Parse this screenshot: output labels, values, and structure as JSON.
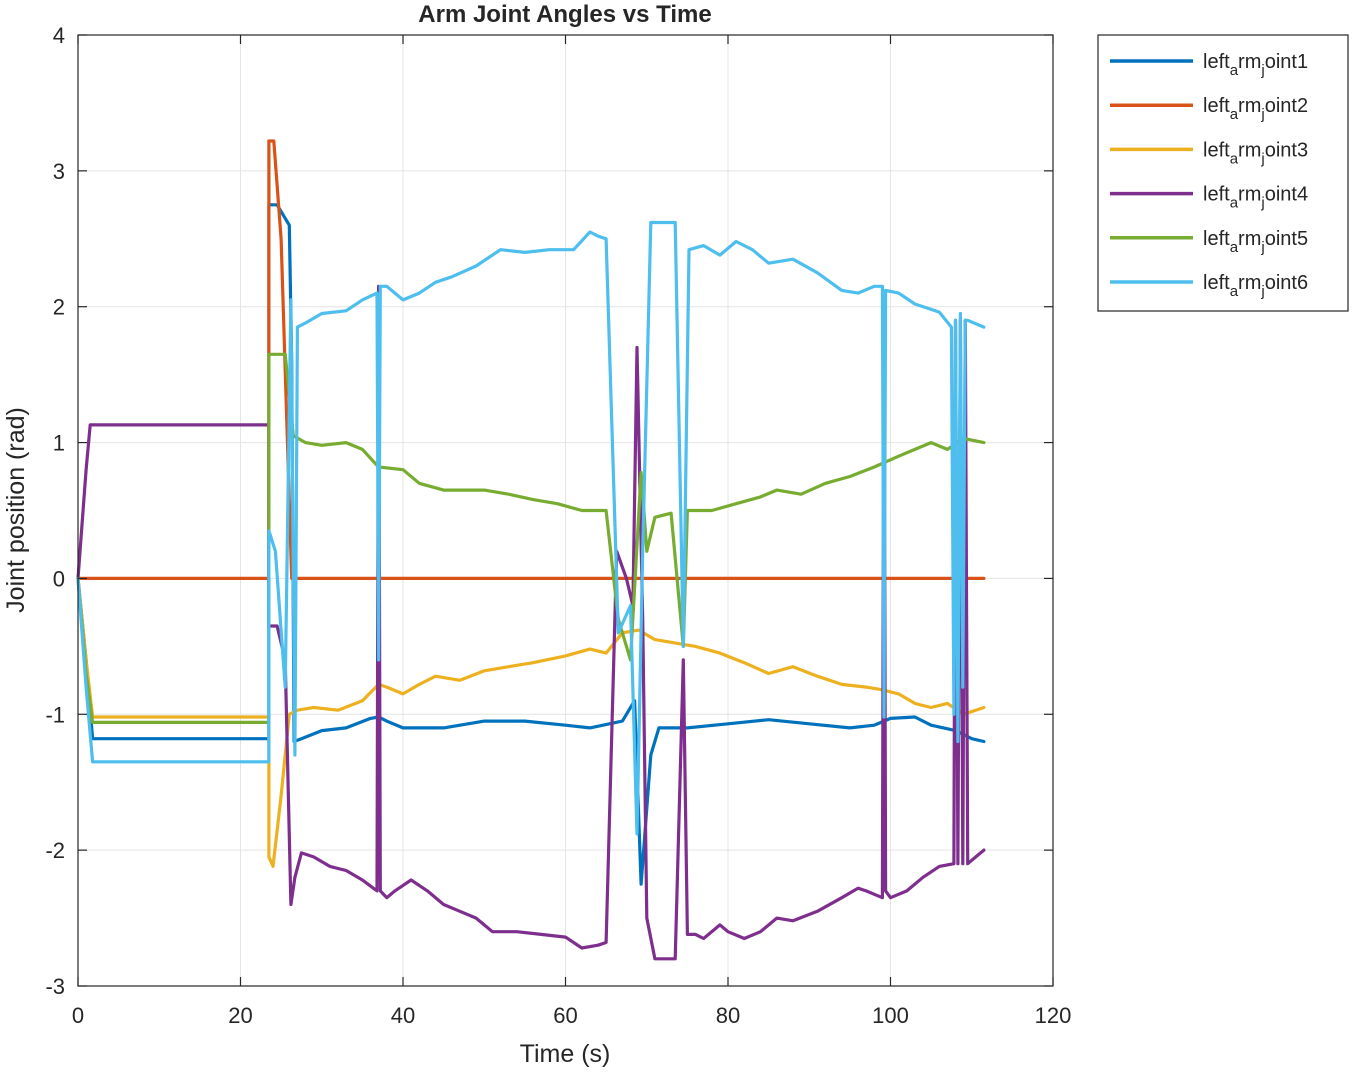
{
  "chart_data": {
    "type": "line",
    "title": "Arm Joint Angles vs Time",
    "xlabel": "Time (s)",
    "ylabel": "Joint position (rad)",
    "xlim": [
      0,
      120
    ],
    "ylim": [
      -3,
      4
    ],
    "xticks": [
      0,
      20,
      40,
      60,
      80,
      100,
      120
    ],
    "yticks": [
      -3,
      -2,
      -1,
      0,
      1,
      2,
      3,
      4
    ],
    "grid": true,
    "legend_position": "outside top-right",
    "series": [
      {
        "name": "left_arm_joint1",
        "legend_label": {
          "base": "left",
          "sub1": "a",
          "mid": "rm",
          "sub2": "j",
          "tail": "oint1"
        },
        "color": "#0072BD",
        "points": [
          [
            0,
            0
          ],
          [
            1,
            -0.6
          ],
          [
            1.8,
            -1.18
          ],
          [
            23.5,
            -1.18
          ],
          [
            23.5,
            2.75
          ],
          [
            24.5,
            2.75
          ],
          [
            26,
            2.6
          ],
          [
            26.3,
            1.6
          ],
          [
            26.6,
            -1.2
          ],
          [
            27.5,
            -1.18
          ],
          [
            30,
            -1.12
          ],
          [
            33,
            -1.1
          ],
          [
            36,
            -1.03
          ],
          [
            37,
            -1.02
          ],
          [
            38,
            -1.05
          ],
          [
            40,
            -1.1
          ],
          [
            45,
            -1.1
          ],
          [
            50,
            -1.05
          ],
          [
            55,
            -1.05
          ],
          [
            60,
            -1.08
          ],
          [
            63,
            -1.1
          ],
          [
            67,
            -1.05
          ],
          [
            68.5,
            -0.9
          ],
          [
            69.3,
            -2.25
          ],
          [
            70.5,
            -1.3
          ],
          [
            71.5,
            -1.1
          ],
          [
            75,
            -1.1
          ],
          [
            80,
            -1.07
          ],
          [
            85,
            -1.04
          ],
          [
            90,
            -1.07
          ],
          [
            95,
            -1.1
          ],
          [
            98,
            -1.08
          ],
          [
            100,
            -1.03
          ],
          [
            103,
            -1.02
          ],
          [
            105,
            -1.08
          ],
          [
            108,
            -1.12
          ],
          [
            110,
            -1.18
          ],
          [
            111.5,
            -1.2
          ]
        ]
      },
      {
        "name": "left_arm_joint2",
        "legend_label": {
          "base": "left",
          "sub1": "a",
          "mid": "rm",
          "sub2": "j",
          "tail": "oint2"
        },
        "color": "#D95319",
        "points": [
          [
            0,
            0
          ],
          [
            23.5,
            0
          ],
          [
            23.5,
            3.22
          ],
          [
            24.1,
            3.22
          ],
          [
            25,
            2.5
          ],
          [
            26.3,
            0
          ],
          [
            111.5,
            0
          ]
        ]
      },
      {
        "name": "left_arm_joint3",
        "legend_label": {
          "base": "left",
          "sub1": "a",
          "mid": "rm",
          "sub2": "j",
          "tail": "oint3"
        },
        "color": "#EDB120",
        "points": [
          [
            0,
            0
          ],
          [
            1,
            -0.6
          ],
          [
            1.8,
            -1.02
          ],
          [
            23.5,
            -1.02
          ],
          [
            23.5,
            -2.05
          ],
          [
            24,
            -2.12
          ],
          [
            25,
            -1.6
          ],
          [
            26,
            -1
          ],
          [
            27,
            -0.97
          ],
          [
            29,
            -0.95
          ],
          [
            32,
            -0.97
          ],
          [
            35,
            -0.9
          ],
          [
            37,
            -0.78
          ],
          [
            38,
            -0.8
          ],
          [
            40,
            -0.85
          ],
          [
            42,
            -0.78
          ],
          [
            44,
            -0.72
          ],
          [
            47,
            -0.75
          ],
          [
            50,
            -0.68
          ],
          [
            53,
            -0.65
          ],
          [
            56,
            -0.62
          ],
          [
            60,
            -0.57
          ],
          [
            63,
            -0.52
          ],
          [
            65,
            -0.55
          ],
          [
            67,
            -0.4
          ],
          [
            69,
            -0.38
          ],
          [
            71,
            -0.45
          ],
          [
            73,
            -0.47
          ],
          [
            76,
            -0.5
          ],
          [
            79,
            -0.55
          ],
          [
            82,
            -0.62
          ],
          [
            85,
            -0.7
          ],
          [
            88,
            -0.65
          ],
          [
            91,
            -0.72
          ],
          [
            94,
            -0.78
          ],
          [
            97,
            -0.8
          ],
          [
            99,
            -0.82
          ],
          [
            101,
            -0.85
          ],
          [
            103,
            -0.92
          ],
          [
            105,
            -0.95
          ],
          [
            107,
            -0.92
          ],
          [
            109,
            -1
          ],
          [
            111.5,
            -0.95
          ]
        ]
      },
      {
        "name": "left_arm_joint4",
        "legend_label": {
          "base": "left",
          "sub1": "a",
          "mid": "rm",
          "sub2": "j",
          "tail": "oint4"
        },
        "color": "#7E2F8E",
        "points": [
          [
            0,
            0
          ],
          [
            1,
            0.8
          ],
          [
            1.5,
            1.13
          ],
          [
            23.5,
            1.13
          ],
          [
            23.5,
            -0.35
          ],
          [
            24.5,
            -0.35
          ],
          [
            25.5,
            -0.6
          ],
          [
            26.2,
            -2.4
          ],
          [
            26.7,
            -2.2
          ],
          [
            27.5,
            -2.02
          ],
          [
            29,
            -2.05
          ],
          [
            31,
            -2.12
          ],
          [
            33,
            -2.15
          ],
          [
            35,
            -2.22
          ],
          [
            36.8,
            -2.3
          ],
          [
            37,
            2.15
          ],
          [
            37.2,
            -2.3
          ],
          [
            38,
            -2.35
          ],
          [
            39,
            -2.3
          ],
          [
            41,
            -2.22
          ],
          [
            43,
            -2.3
          ],
          [
            45,
            -2.4
          ],
          [
            47,
            -2.45
          ],
          [
            49,
            -2.5
          ],
          [
            51,
            -2.6
          ],
          [
            54,
            -2.6
          ],
          [
            57,
            -2.62
          ],
          [
            60,
            -2.64
          ],
          [
            62,
            -2.72
          ],
          [
            64,
            -2.7
          ],
          [
            65,
            -2.68
          ],
          [
            66.3,
            0.2
          ],
          [
            67.5,
            0
          ],
          [
            68.3,
            -0.2
          ],
          [
            68.8,
            1.7
          ],
          [
            69.5,
            -0.3
          ],
          [
            70,
            -2.5
          ],
          [
            71,
            -2.8
          ],
          [
            73.5,
            -2.8
          ],
          [
            74.5,
            -0.6
          ],
          [
            75,
            -2.62
          ],
          [
            76,
            -2.62
          ],
          [
            77,
            -2.65
          ],
          [
            79,
            -2.55
          ],
          [
            80,
            -2.6
          ],
          [
            82,
            -2.65
          ],
          [
            84,
            -2.6
          ],
          [
            86,
            -2.5
          ],
          [
            88,
            -2.52
          ],
          [
            91,
            -2.45
          ],
          [
            94,
            -2.35
          ],
          [
            96,
            -2.28
          ],
          [
            97,
            -2.3
          ],
          [
            99,
            -2.35
          ],
          [
            99.2,
            2.1
          ],
          [
            99.4,
            -2.3
          ],
          [
            100,
            -2.35
          ],
          [
            102,
            -2.3
          ],
          [
            104,
            -2.2
          ],
          [
            106,
            -2.12
          ],
          [
            107.8,
            -2.1
          ],
          [
            108,
            1.9
          ],
          [
            108.3,
            -2.1
          ],
          [
            108.6,
            1.9
          ],
          [
            108.9,
            -2.1
          ],
          [
            109.2,
            1.9
          ],
          [
            109.5,
            -2.1
          ],
          [
            110.5,
            -2.05
          ],
          [
            111.5,
            -2
          ]
        ]
      },
      {
        "name": "left_arm_joint5",
        "legend_label": {
          "base": "left",
          "sub1": "a",
          "mid": "rm",
          "sub2": "j",
          "tail": "oint5"
        },
        "color": "#77AC30",
        "points": [
          [
            0,
            0
          ],
          [
            1,
            -0.7
          ],
          [
            1.8,
            -1.06
          ],
          [
            23.5,
            -1.06
          ],
          [
            23.5,
            1.65
          ],
          [
            25.5,
            1.65
          ],
          [
            26.5,
            1.05
          ],
          [
            28,
            1
          ],
          [
            30,
            0.98
          ],
          [
            33,
            1
          ],
          [
            35,
            0.95
          ],
          [
            37,
            0.82
          ],
          [
            40,
            0.8
          ],
          [
            42,
            0.7
          ],
          [
            45,
            0.65
          ],
          [
            48,
            0.65
          ],
          [
            50,
            0.65
          ],
          [
            53,
            0.62
          ],
          [
            56,
            0.58
          ],
          [
            59,
            0.55
          ],
          [
            62,
            0.5
          ],
          [
            64,
            0.5
          ],
          [
            65,
            0.5
          ],
          [
            66.5,
            -0.3
          ],
          [
            68,
            -0.6
          ],
          [
            69.3,
            0.78
          ],
          [
            70,
            0.2
          ],
          [
            71,
            0.45
          ],
          [
            73,
            0.48
          ],
          [
            74.5,
            -0.5
          ],
          [
            75,
            0.5
          ],
          [
            78,
            0.5
          ],
          [
            81,
            0.55
          ],
          [
            84,
            0.6
          ],
          [
            86,
            0.65
          ],
          [
            89,
            0.62
          ],
          [
            92,
            0.7
          ],
          [
            95,
            0.75
          ],
          [
            98,
            0.82
          ],
          [
            101,
            0.9
          ],
          [
            103,
            0.95
          ],
          [
            105,
            1
          ],
          [
            107,
            0.95
          ],
          [
            109,
            1.03
          ],
          [
            111.5,
            1
          ]
        ]
      },
      {
        "name": "left_arm_joint6",
        "legend_label": {
          "base": "left",
          "sub1": "a",
          "mid": "rm",
          "sub2": "j",
          "tail": "oint6"
        },
        "color": "#4DBEEE",
        "points": [
          [
            0,
            0
          ],
          [
            1,
            -0.8
          ],
          [
            1.8,
            -1.35
          ],
          [
            23.5,
            -1.35
          ],
          [
            23.5,
            0.35
          ],
          [
            24.3,
            0.2
          ],
          [
            25.5,
            -0.8
          ],
          [
            26.2,
            2.05
          ],
          [
            26.7,
            -1.3
          ],
          [
            27,
            1.85
          ],
          [
            28,
            1.88
          ],
          [
            30,
            1.95
          ],
          [
            33,
            1.97
          ],
          [
            35,
            2.05
          ],
          [
            36.8,
            2.1
          ],
          [
            37,
            -0.6
          ],
          [
            37.2,
            2.15
          ],
          [
            38,
            2.15
          ],
          [
            40,
            2.05
          ],
          [
            42,
            2.1
          ],
          [
            44,
            2.18
          ],
          [
            46,
            2.22
          ],
          [
            49,
            2.3
          ],
          [
            52,
            2.42
          ],
          [
            55,
            2.4
          ],
          [
            58,
            2.42
          ],
          [
            61,
            2.42
          ],
          [
            63,
            2.55
          ],
          [
            64,
            2.52
          ],
          [
            65,
            2.5
          ],
          [
            66.5,
            -0.4
          ],
          [
            68,
            -0.2
          ],
          [
            68.8,
            -1.88
          ],
          [
            69.5,
            0.2
          ],
          [
            70.5,
            2.62
          ],
          [
            72,
            2.62
          ],
          [
            73.5,
            2.62
          ],
          [
            74.5,
            -0.5
          ],
          [
            75.2,
            2.42
          ],
          [
            77,
            2.45
          ],
          [
            79,
            2.38
          ],
          [
            81,
            2.48
          ],
          [
            83,
            2.42
          ],
          [
            85,
            2.32
          ],
          [
            88,
            2.35
          ],
          [
            91,
            2.25
          ],
          [
            94,
            2.12
          ],
          [
            96,
            2.1
          ],
          [
            98,
            2.15
          ],
          [
            99,
            2.15
          ],
          [
            99.2,
            -1.02
          ],
          [
            99.4,
            2.12
          ],
          [
            101,
            2.1
          ],
          [
            103,
            2.02
          ],
          [
            105,
            1.98
          ],
          [
            106,
            1.96
          ],
          [
            107.5,
            1.85
          ],
          [
            107.8,
            -1
          ],
          [
            108,
            1.9
          ],
          [
            108.3,
            -1.2
          ],
          [
            108.6,
            1.95
          ],
          [
            108.9,
            -0.8
          ],
          [
            109.2,
            1.9
          ],
          [
            109.5,
            1.9
          ],
          [
            111.5,
            1.85
          ]
        ]
      }
    ]
  }
}
